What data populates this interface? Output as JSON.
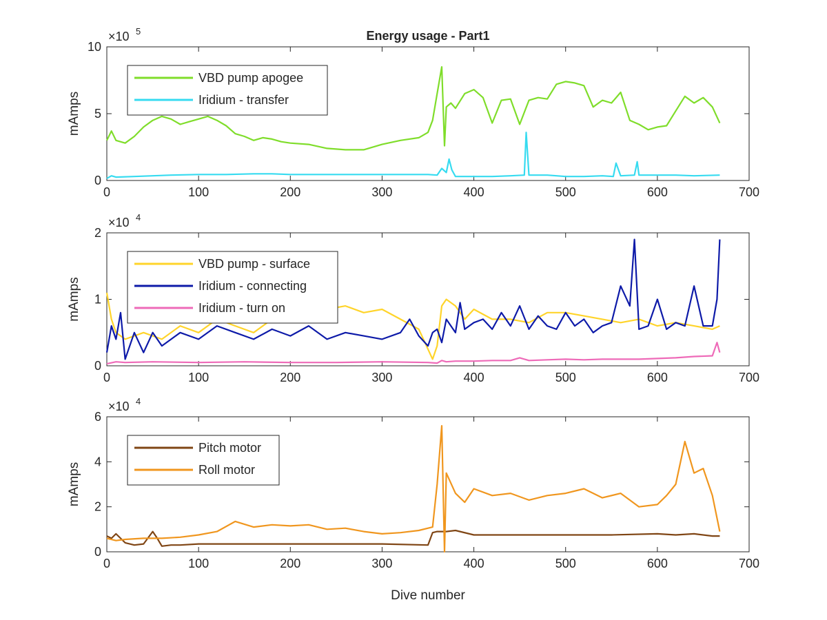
{
  "figure": {
    "title": "Energy usage - Part1",
    "xlabel": "Dive number"
  },
  "chart_data": [
    {
      "type": "line",
      "title": "Energy usage - Part1",
      "xlabel": "",
      "ylabel": "mAmps",
      "exponent_label": "×10",
      "exponent_power": "5",
      "xlim": [
        0,
        700
      ],
      "ylim": [
        0,
        10
      ],
      "xticks": [
        "0",
        "100",
        "200",
        "300",
        "400",
        "500",
        "600",
        "700"
      ],
      "yticks": [
        "0",
        "5",
        "10"
      ],
      "legend_position": "top-left",
      "grid": false,
      "series": [
        {
          "name": "VBD pump apogee",
          "color": "#7fdd2a",
          "x": [
            0,
            5,
            10,
            20,
            30,
            40,
            50,
            60,
            70,
            80,
            90,
            100,
            110,
            120,
            130,
            140,
            150,
            160,
            170,
            180,
            190,
            200,
            220,
            240,
            260,
            280,
            300,
            320,
            340,
            350,
            355,
            360,
            365,
            368,
            370,
            375,
            380,
            390,
            400,
            410,
            420,
            430,
            440,
            450,
            460,
            470,
            480,
            490,
            500,
            510,
            520,
            530,
            540,
            550,
            560,
            570,
            580,
            590,
            600,
            610,
            620,
            630,
            640,
            650,
            660,
            668
          ],
          "y": [
            3.0,
            3.7,
            3.0,
            2.8,
            3.3,
            4.0,
            4.5,
            4.8,
            4.6,
            4.2,
            4.4,
            4.6,
            4.8,
            4.5,
            4.1,
            3.5,
            3.3,
            3.0,
            3.2,
            3.1,
            2.9,
            2.8,
            2.7,
            2.4,
            2.3,
            2.3,
            2.7,
            3.0,
            3.2,
            3.6,
            4.5,
            6.5,
            8.5,
            2.6,
            5.5,
            5.8,
            5.4,
            6.5,
            6.8,
            6.2,
            4.3,
            6.0,
            6.1,
            4.2,
            6.0,
            6.2,
            6.1,
            7.2,
            7.4,
            7.3,
            7.1,
            5.5,
            6.0,
            5.8,
            6.6,
            4.5,
            4.2,
            3.8,
            4.0,
            4.1,
            5.2,
            6.3,
            5.8,
            6.2,
            5.5,
            4.3
          ]
        },
        {
          "name": "Iridium - transfer",
          "color": "#36dbf0",
          "x": [
            0,
            5,
            10,
            30,
            50,
            70,
            100,
            130,
            160,
            180,
            200,
            230,
            260,
            290,
            320,
            350,
            360,
            365,
            370,
            373,
            376,
            380,
            400,
            420,
            440,
            455,
            457,
            460,
            480,
            500,
            520,
            540,
            552,
            555,
            560,
            575,
            578,
            580,
            600,
            620,
            640,
            668
          ],
          "y": [
            0.15,
            0.35,
            0.25,
            0.3,
            0.35,
            0.4,
            0.45,
            0.45,
            0.5,
            0.5,
            0.45,
            0.45,
            0.45,
            0.45,
            0.45,
            0.45,
            0.4,
            0.9,
            0.6,
            1.6,
            0.8,
            0.3,
            0.3,
            0.3,
            0.35,
            0.4,
            3.6,
            0.4,
            0.4,
            0.3,
            0.3,
            0.35,
            0.3,
            1.3,
            0.35,
            0.4,
            1.4,
            0.4,
            0.4,
            0.4,
            0.35,
            0.4
          ]
        }
      ]
    },
    {
      "type": "line",
      "title": "",
      "xlabel": "",
      "ylabel": "mAmps",
      "exponent_label": "×10",
      "exponent_power": "4",
      "xlim": [
        0,
        700
      ],
      "ylim": [
        0,
        2
      ],
      "xticks": [
        "0",
        "100",
        "200",
        "300",
        "400",
        "500",
        "600",
        "700"
      ],
      "yticks": [
        "0",
        "1",
        "2"
      ],
      "legend_position": "top-left",
      "grid": false,
      "series": [
        {
          "name": "VBD pump - surface",
          "color": "#ffd42a",
          "x": [
            0,
            5,
            10,
            20,
            40,
            60,
            80,
            100,
            120,
            140,
            160,
            180,
            200,
            220,
            240,
            260,
            280,
            300,
            320,
            340,
            355,
            360,
            365,
            370,
            380,
            390,
            400,
            420,
            440,
            460,
            480,
            500,
            520,
            540,
            560,
            580,
            600,
            620,
            640,
            660,
            668
          ],
          "y": [
            1.1,
            0.7,
            0.5,
            0.4,
            0.5,
            0.4,
            0.6,
            0.5,
            0.7,
            0.6,
            0.5,
            0.7,
            0.8,
            0.7,
            0.85,
            0.9,
            0.8,
            0.85,
            0.7,
            0.55,
            0.1,
            0.3,
            0.9,
            1.0,
            0.9,
            0.7,
            0.85,
            0.7,
            0.7,
            0.65,
            0.8,
            0.8,
            0.75,
            0.7,
            0.65,
            0.7,
            0.6,
            0.65,
            0.6,
            0.55,
            0.6
          ]
        },
        {
          "name": "Iridium - connecting",
          "color": "#0d1aa8",
          "x": [
            0,
            5,
            10,
            15,
            20,
            30,
            40,
            50,
            60,
            80,
            100,
            120,
            140,
            160,
            180,
            200,
            220,
            240,
            260,
            280,
            300,
            320,
            330,
            340,
            350,
            355,
            360,
            365,
            370,
            380,
            385,
            390,
            400,
            410,
            420,
            430,
            440,
            450,
            460,
            470,
            480,
            490,
            500,
            510,
            520,
            530,
            540,
            550,
            560,
            570,
            575,
            580,
            590,
            600,
            610,
            620,
            630,
            640,
            650,
            660,
            665,
            668
          ],
          "y": [
            0.2,
            0.6,
            0.4,
            0.8,
            0.1,
            0.5,
            0.2,
            0.5,
            0.3,
            0.5,
            0.4,
            0.6,
            0.5,
            0.4,
            0.55,
            0.45,
            0.6,
            0.4,
            0.5,
            0.45,
            0.4,
            0.5,
            0.7,
            0.45,
            0.3,
            0.5,
            0.55,
            0.35,
            0.7,
            0.5,
            0.95,
            0.55,
            0.65,
            0.7,
            0.55,
            0.8,
            0.6,
            0.9,
            0.55,
            0.75,
            0.6,
            0.55,
            0.8,
            0.6,
            0.7,
            0.5,
            0.6,
            0.65,
            1.2,
            0.9,
            1.9,
            0.55,
            0.6,
            1.0,
            0.55,
            0.65,
            0.6,
            1.2,
            0.6,
            0.6,
            1.0,
            1.9
          ]
        },
        {
          "name": "Iridium - turn on",
          "color": "#ee6ab8",
          "x": [
            0,
            10,
            20,
            50,
            100,
            150,
            200,
            250,
            300,
            350,
            360,
            365,
            370,
            380,
            400,
            420,
            440,
            450,
            460,
            480,
            500,
            520,
            540,
            560,
            580,
            600,
            620,
            640,
            660,
            665,
            668
          ],
          "y": [
            0.03,
            0.06,
            0.05,
            0.06,
            0.05,
            0.06,
            0.05,
            0.05,
            0.06,
            0.05,
            0.04,
            0.08,
            0.06,
            0.07,
            0.07,
            0.08,
            0.08,
            0.12,
            0.08,
            0.09,
            0.1,
            0.09,
            0.1,
            0.1,
            0.1,
            0.11,
            0.12,
            0.14,
            0.15,
            0.35,
            0.2
          ]
        }
      ]
    },
    {
      "type": "line",
      "title": "",
      "xlabel": "Dive number",
      "ylabel": "mAmps",
      "exponent_label": "×10",
      "exponent_power": "4",
      "xlim": [
        0,
        700
      ],
      "ylim": [
        0,
        6
      ],
      "xticks": [
        "0",
        "100",
        "200",
        "300",
        "400",
        "500",
        "600",
        "700"
      ],
      "yticks": [
        "0",
        "2",
        "4",
        "6"
      ],
      "legend_position": "top-left",
      "grid": false,
      "series": [
        {
          "name": "Pitch motor",
          "color": "#7f4514",
          "x": [
            0,
            5,
            10,
            20,
            30,
            40,
            50,
            55,
            60,
            70,
            80,
            100,
            150,
            200,
            250,
            300,
            350,
            355,
            360,
            370,
            380,
            400,
            450,
            500,
            550,
            600,
            620,
            640,
            660,
            668
          ],
          "y": [
            0.7,
            0.6,
            0.8,
            0.4,
            0.3,
            0.35,
            0.9,
            0.6,
            0.25,
            0.3,
            0.3,
            0.35,
            0.35,
            0.35,
            0.35,
            0.35,
            0.3,
            0.85,
            0.9,
            0.9,
            0.95,
            0.75,
            0.75,
            0.75,
            0.75,
            0.8,
            0.75,
            0.8,
            0.7,
            0.7
          ]
        },
        {
          "name": "Roll motor",
          "color": "#f0961e",
          "x": [
            0,
            10,
            20,
            40,
            60,
            80,
            100,
            120,
            140,
            160,
            180,
            200,
            220,
            240,
            260,
            280,
            300,
            320,
            340,
            355,
            360,
            365,
            368,
            370,
            380,
            390,
            400,
            420,
            440,
            460,
            480,
            500,
            520,
            540,
            560,
            580,
            600,
            610,
            620,
            630,
            640,
            650,
            660,
            668
          ],
          "y": [
            0.6,
            0.5,
            0.55,
            0.6,
            0.6,
            0.65,
            0.75,
            0.9,
            1.35,
            1.1,
            1.2,
            1.15,
            1.2,
            1.0,
            1.05,
            0.9,
            0.8,
            0.85,
            0.95,
            1.1,
            3.0,
            5.6,
            0.0,
            3.5,
            2.6,
            2.2,
            2.8,
            2.5,
            2.6,
            2.3,
            2.5,
            2.6,
            2.8,
            2.4,
            2.6,
            2.0,
            2.1,
            2.5,
            3.0,
            4.9,
            3.5,
            3.7,
            2.5,
            0.9
          ]
        }
      ]
    }
  ]
}
